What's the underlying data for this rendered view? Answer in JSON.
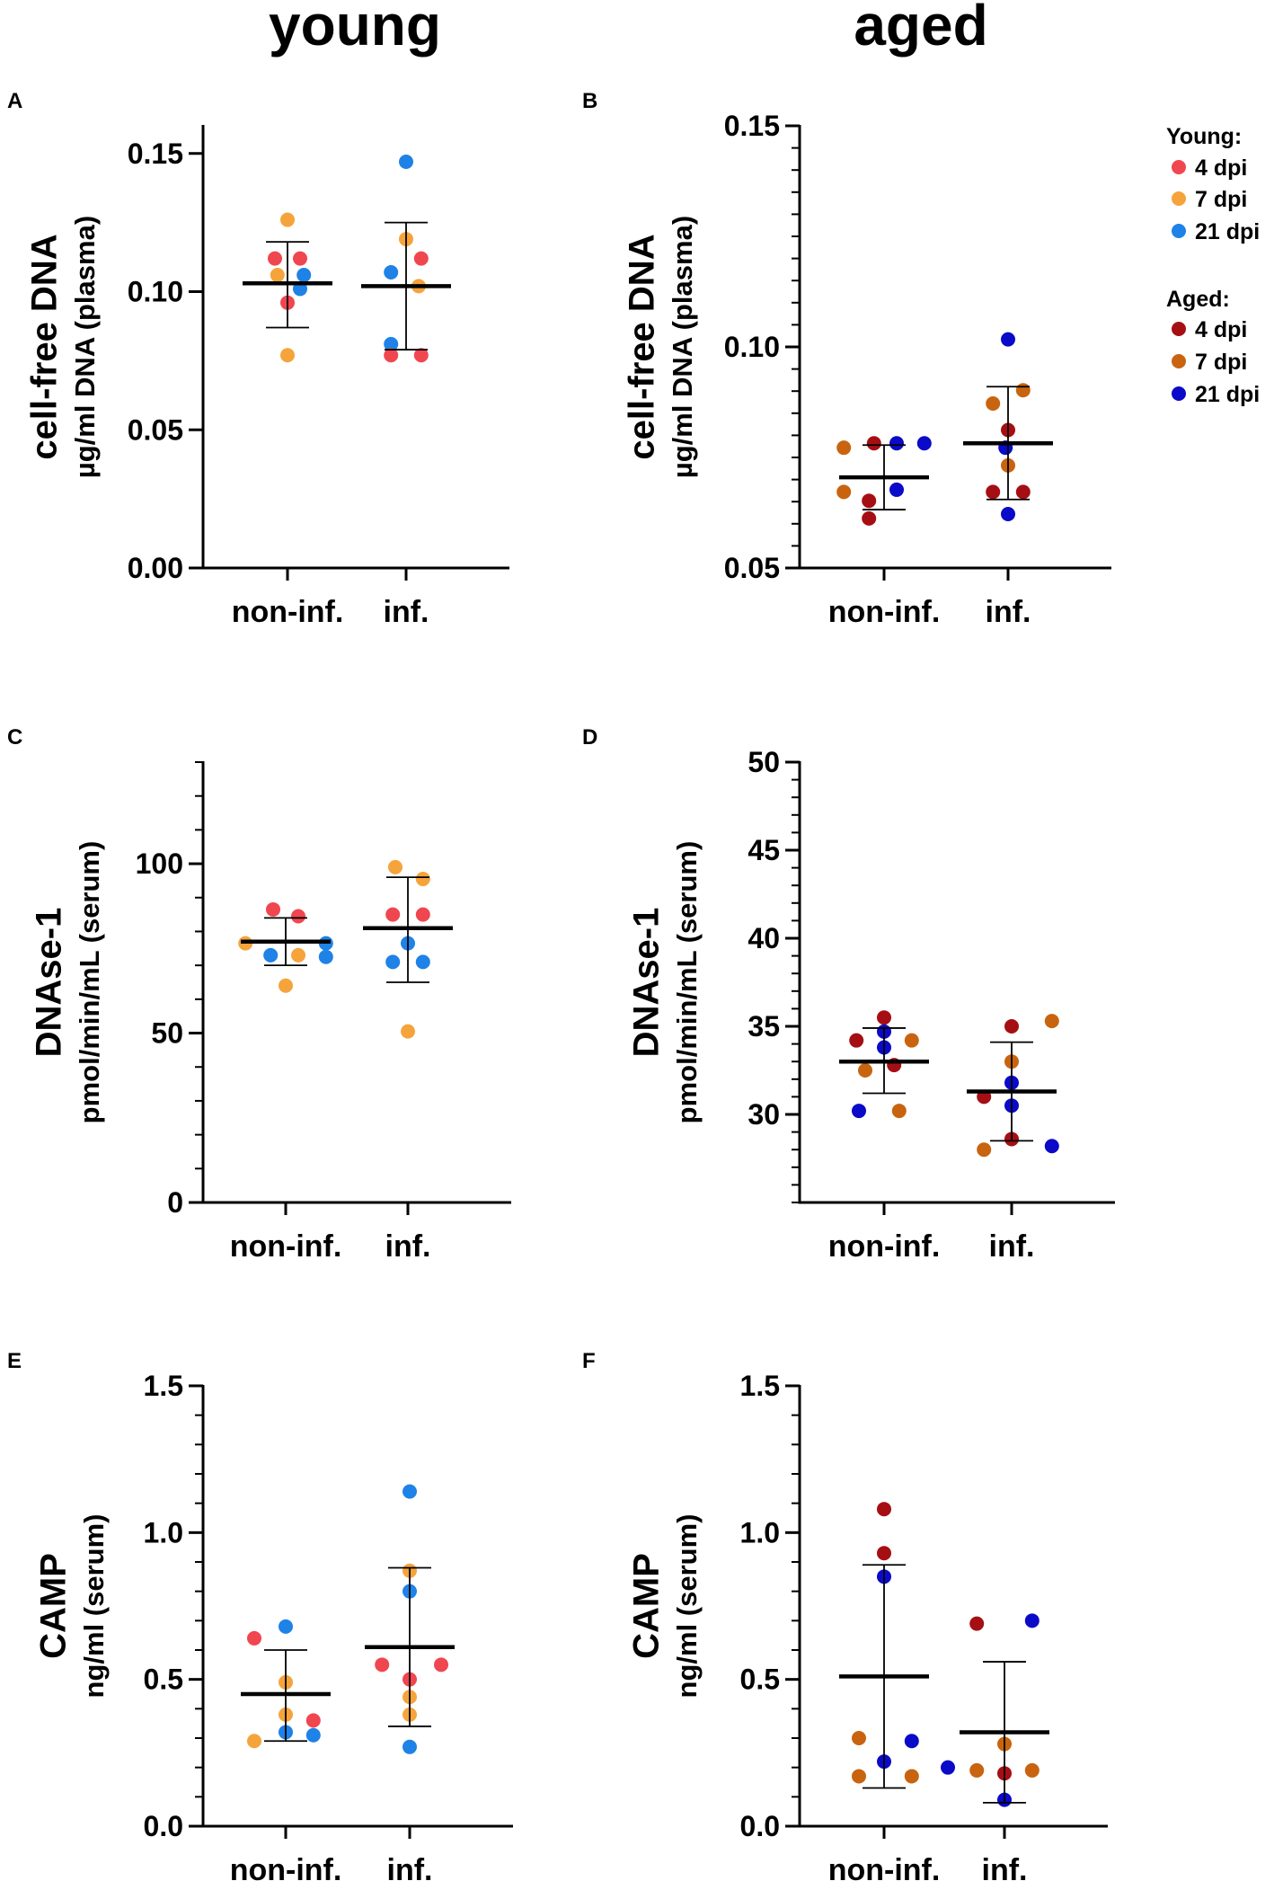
{
  "column_titles": {
    "left": "young",
    "right": "aged"
  },
  "colors": {
    "young_4dpi": "#f04650",
    "young_7dpi": "#f5a43c",
    "young_21dpi": "#1e82e6",
    "aged_4dpi": "#a50f14",
    "aged_7dpi": "#c8640f",
    "aged_21dpi": "#0a0ac8"
  },
  "legend": {
    "young_header": "Young:",
    "aged_header": "Aged:",
    "young_items": [
      {
        "label": "4 dpi",
        "color": "#f04650"
      },
      {
        "label": "7 dpi",
        "color": "#f5a43c"
      },
      {
        "label": "21 dpi",
        "color": "#1e82e6"
      }
    ],
    "aged_items": [
      {
        "label": "4 dpi",
        "color": "#a50f14"
      },
      {
        "label": "7 dpi",
        "color": "#c8640f"
      },
      {
        "label": "21 dpi",
        "color": "#0a0ac8"
      }
    ]
  },
  "chart_data": [
    {
      "panel": "A",
      "type": "scatter",
      "group": "young",
      "ylabel_main": "cell-free  DNA",
      "ylabel_sub": "µg/ml DNA (plasma)",
      "categories": [
        "non-inf.",
        "inf."
      ],
      "ylim": [
        0,
        0.16
      ],
      "yticks": [
        0.0,
        0.05,
        0.1,
        0.15
      ],
      "ytick_labels": [
        "0.00",
        "0.05",
        "0.10",
        "0.15"
      ],
      "minor_ticks": false,
      "summary": [
        {
          "mean": 0.103,
          "sd_low": 0.087,
          "sd_high": 0.118
        },
        {
          "mean": 0.102,
          "sd_low": 0.079,
          "sd_high": 0.125
        }
      ],
      "points": [
        {
          "cat": 0,
          "dx": 0.0,
          "y": 0.126,
          "series": "7dpi"
        },
        {
          "cat": 0,
          "dx": -0.1,
          "y": 0.112,
          "series": "4dpi"
        },
        {
          "cat": 0,
          "dx": 0.1,
          "y": 0.112,
          "series": "4dpi"
        },
        {
          "cat": 0,
          "dx": -0.08,
          "y": 0.106,
          "series": "7dpi"
        },
        {
          "cat": 0,
          "dx": 0.13,
          "y": 0.106,
          "series": "21dpi"
        },
        {
          "cat": 0,
          "dx": 0.1,
          "y": 0.101,
          "series": "21dpi"
        },
        {
          "cat": 0,
          "dx": 0.0,
          "y": 0.096,
          "series": "4dpi"
        },
        {
          "cat": 0,
          "dx": 0.0,
          "y": 0.077,
          "series": "7dpi"
        },
        {
          "cat": 1,
          "dx": 0.0,
          "y": 0.147,
          "series": "21dpi"
        },
        {
          "cat": 1,
          "dx": 0.0,
          "y": 0.119,
          "series": "7dpi"
        },
        {
          "cat": 1,
          "dx": 0.12,
          "y": 0.112,
          "series": "4dpi"
        },
        {
          "cat": 1,
          "dx": -0.12,
          "y": 0.107,
          "series": "21dpi"
        },
        {
          "cat": 1,
          "dx": 0.1,
          "y": 0.102,
          "series": "7dpi"
        },
        {
          "cat": 1,
          "dx": -0.12,
          "y": 0.081,
          "series": "21dpi"
        },
        {
          "cat": 1,
          "dx": -0.12,
          "y": 0.077,
          "series": "4dpi"
        },
        {
          "cat": 1,
          "dx": 0.12,
          "y": 0.077,
          "series": "4dpi"
        }
      ]
    },
    {
      "panel": "B",
      "type": "scatter",
      "group": "aged",
      "ylabel_main": "cell-free  DNA",
      "ylabel_sub": "µg/ml DNA (plasma)",
      "categories": [
        "non-inf.",
        "inf."
      ],
      "ylim": [
        0.05,
        0.15
      ],
      "yticks": [
        0.05,
        0.1,
        0.15
      ],
      "ytick_labels": [
        "0.05",
        "0.10",
        "0.15"
      ],
      "minor_ticks": true,
      "minor_step": 0.005,
      "summary": [
        {
          "mean": 0.0705,
          "sd_low": 0.0632,
          "sd_high": 0.0778
        },
        {
          "mean": 0.0782,
          "sd_low": 0.0655,
          "sd_high": 0.091
        }
      ],
      "points": [
        {
          "cat": 0,
          "dx": -0.32,
          "y": 0.0772,
          "series": "7dpi"
        },
        {
          "cat": 0,
          "dx": -0.08,
          "y": 0.0782,
          "series": "4dpi"
        },
        {
          "cat": 0,
          "dx": 0.1,
          "y": 0.0782,
          "series": "21dpi"
        },
        {
          "cat": 0,
          "dx": 0.32,
          "y": 0.0782,
          "series": "21dpi"
        },
        {
          "cat": 0,
          "dx": -0.32,
          "y": 0.0672,
          "series": "7dpi"
        },
        {
          "cat": 0,
          "dx": 0.1,
          "y": 0.0677,
          "series": "21dpi"
        },
        {
          "cat": 0,
          "dx": -0.12,
          "y": 0.0652,
          "series": "4dpi"
        },
        {
          "cat": 0,
          "dx": -0.12,
          "y": 0.0612,
          "series": "4dpi"
        },
        {
          "cat": 1,
          "dx": 0.0,
          "y": 0.1017,
          "series": "21dpi"
        },
        {
          "cat": 1,
          "dx": 0.12,
          "y": 0.0902,
          "series": "7dpi"
        },
        {
          "cat": 1,
          "dx": -0.12,
          "y": 0.0872,
          "series": "7dpi"
        },
        {
          "cat": 1,
          "dx": 0.0,
          "y": 0.0812,
          "series": "4dpi"
        },
        {
          "cat": 1,
          "dx": -0.02,
          "y": 0.0772,
          "series": "21dpi"
        },
        {
          "cat": 1,
          "dx": 0.0,
          "y": 0.0732,
          "series": "7dpi"
        },
        {
          "cat": 1,
          "dx": 0.12,
          "y": 0.0672,
          "series": "4dpi"
        },
        {
          "cat": 1,
          "dx": -0.12,
          "y": 0.0672,
          "series": "4dpi"
        },
        {
          "cat": 1,
          "dx": 0.0,
          "y": 0.0622,
          "series": "21dpi"
        }
      ]
    },
    {
      "panel": "C",
      "type": "scatter",
      "group": "young",
      "ylabel_main": "DNAse-1",
      "ylabel_sub": "pmol/min/mL (serum)",
      "categories": [
        "non-inf.",
        "inf."
      ],
      "ylim": [
        0,
        130
      ],
      "yticks": [
        0,
        50,
        100
      ],
      "ytick_labels": [
        "0",
        "50",
        "100"
      ],
      "minor_ticks": true,
      "minor_step": 10,
      "summary": [
        {
          "mean": 77,
          "sd_low": 70,
          "sd_high": 84
        },
        {
          "mean": 81,
          "sd_low": 65,
          "sd_high": 96
        }
      ],
      "points": [
        {
          "cat": 0,
          "dx": -0.1,
          "y": 86.5,
          "series": "4dpi"
        },
        {
          "cat": 0,
          "dx": 0.1,
          "y": 84.5,
          "series": "4dpi"
        },
        {
          "cat": 0,
          "dx": -0.32,
          "y": 76.5,
          "series": "7dpi"
        },
        {
          "cat": 0,
          "dx": 0.32,
          "y": 76.5,
          "series": "21dpi"
        },
        {
          "cat": 0,
          "dx": -0.12,
          "y": 73,
          "series": "21dpi"
        },
        {
          "cat": 0,
          "dx": 0.1,
          "y": 73,
          "series": "7dpi"
        },
        {
          "cat": 0,
          "dx": 0.32,
          "y": 72.5,
          "series": "21dpi"
        },
        {
          "cat": 0,
          "dx": 0.0,
          "y": 64,
          "series": "7dpi"
        },
        {
          "cat": 1,
          "dx": -0.1,
          "y": 99,
          "series": "7dpi"
        },
        {
          "cat": 1,
          "dx": 0.12,
          "y": 95.5,
          "series": "7dpi"
        },
        {
          "cat": 1,
          "dx": -0.12,
          "y": 85,
          "series": "4dpi"
        },
        {
          "cat": 1,
          "dx": 0.12,
          "y": 85,
          "series": "4dpi"
        },
        {
          "cat": 1,
          "dx": 0.0,
          "y": 76.5,
          "series": "21dpi"
        },
        {
          "cat": 1,
          "dx": -0.12,
          "y": 71,
          "series": "21dpi"
        },
        {
          "cat": 1,
          "dx": 0.12,
          "y": 71,
          "series": "21dpi"
        },
        {
          "cat": 1,
          "dx": 0.0,
          "y": 50.5,
          "series": "7dpi"
        }
      ]
    },
    {
      "panel": "D",
      "type": "scatter",
      "group": "aged",
      "ylabel_main": "DNAse-1",
      "ylabel_sub": "pmol/min/mL (serum)",
      "categories": [
        "non-inf.",
        "inf."
      ],
      "ylim": [
        25,
        50
      ],
      "yticks": [
        30,
        35,
        40,
        45,
        50
      ],
      "ytick_labels": [
        "30",
        "35",
        "40",
        "45",
        "50"
      ],
      "minor_ticks": true,
      "minor_step": 1,
      "summary": [
        {
          "mean": 33,
          "sd_low": 31.2,
          "sd_high": 34.9
        },
        {
          "mean": 31.3,
          "sd_low": 28.5,
          "sd_high": 34.1
        }
      ],
      "points": [
        {
          "cat": 0,
          "dx": 0.0,
          "y": 35.5,
          "series": "4dpi"
        },
        {
          "cat": 0,
          "dx": -0.22,
          "y": 34.2,
          "series": "4dpi"
        },
        {
          "cat": 0,
          "dx": 0.22,
          "y": 34.2,
          "series": "7dpi"
        },
        {
          "cat": 0,
          "dx": 0.0,
          "y": 34.7,
          "series": "21dpi"
        },
        {
          "cat": 0,
          "dx": 0.0,
          "y": 33.8,
          "series": "21dpi"
        },
        {
          "cat": 0,
          "dx": -0.15,
          "y": 32.5,
          "series": "7dpi"
        },
        {
          "cat": 0,
          "dx": 0.08,
          "y": 32.8,
          "series": "4dpi"
        },
        {
          "cat": 0,
          "dx": -0.2,
          "y": 30.2,
          "series": "21dpi"
        },
        {
          "cat": 0,
          "dx": 0.12,
          "y": 30.2,
          "series": "7dpi"
        },
        {
          "cat": 1,
          "dx": 0.0,
          "y": 35,
          "series": "4dpi"
        },
        {
          "cat": 1,
          "dx": 0.32,
          "y": 35.3,
          "series": "7dpi"
        },
        {
          "cat": 1,
          "dx": 0.0,
          "y": 33,
          "series": "7dpi"
        },
        {
          "cat": 1,
          "dx": 0.0,
          "y": 31.8,
          "series": "21dpi"
        },
        {
          "cat": 1,
          "dx": -0.22,
          "y": 31,
          "series": "4dpi"
        },
        {
          "cat": 1,
          "dx": 0.0,
          "y": 30.5,
          "series": "21dpi"
        },
        {
          "cat": 1,
          "dx": 0.0,
          "y": 28.6,
          "series": "4dpi"
        },
        {
          "cat": 1,
          "dx": -0.22,
          "y": 28,
          "series": "7dpi"
        },
        {
          "cat": 1,
          "dx": 0.32,
          "y": 28.2,
          "series": "21dpi"
        }
      ]
    },
    {
      "panel": "E",
      "type": "scatter",
      "group": "young",
      "ylabel_main": "CAMP",
      "ylabel_sub": "ng/ml (serum)",
      "categories": [
        "non-inf.",
        "inf."
      ],
      "ylim": [
        0,
        1.5
      ],
      "yticks": [
        0.0,
        0.5,
        1.0,
        1.5
      ],
      "ytick_labels": [
        "0.0",
        "0.5",
        "1.0",
        "1.5"
      ],
      "minor_ticks": true,
      "minor_step": 0.1,
      "summary": [
        {
          "mean": 0.45,
          "sd_low": 0.29,
          "sd_high": 0.6
        },
        {
          "mean": 0.61,
          "sd_low": 0.34,
          "sd_high": 0.88
        }
      ],
      "points": [
        {
          "cat": 0,
          "dx": -0.25,
          "y": 0.64,
          "series": "4dpi"
        },
        {
          "cat": 0,
          "dx": 0.0,
          "y": 0.68,
          "series": "21dpi"
        },
        {
          "cat": 0,
          "dx": 0.0,
          "y": 0.49,
          "series": "7dpi"
        },
        {
          "cat": 0,
          "dx": 0.0,
          "y": 0.38,
          "series": "7dpi"
        },
        {
          "cat": 0,
          "dx": 0.22,
          "y": 0.36,
          "series": "4dpi"
        },
        {
          "cat": 0,
          "dx": 0.0,
          "y": 0.32,
          "series": "21dpi"
        },
        {
          "cat": 0,
          "dx": 0.22,
          "y": 0.31,
          "series": "21dpi"
        },
        {
          "cat": 0,
          "dx": -0.25,
          "y": 0.29,
          "series": "7dpi"
        },
        {
          "cat": 1,
          "dx": 0.0,
          "y": 1.14,
          "series": "21dpi"
        },
        {
          "cat": 1,
          "dx": 0.0,
          "y": 0.87,
          "series": "7dpi"
        },
        {
          "cat": 1,
          "dx": 0.0,
          "y": 0.8,
          "series": "21dpi"
        },
        {
          "cat": 1,
          "dx": -0.22,
          "y": 0.55,
          "series": "4dpi"
        },
        {
          "cat": 1,
          "dx": 0.25,
          "y": 0.55,
          "series": "4dpi"
        },
        {
          "cat": 1,
          "dx": 0.0,
          "y": 0.5,
          "series": "4dpi"
        },
        {
          "cat": 1,
          "dx": 0.0,
          "y": 0.44,
          "series": "7dpi"
        },
        {
          "cat": 1,
          "dx": 0.0,
          "y": 0.38,
          "series": "7dpi"
        },
        {
          "cat": 1,
          "dx": 0.0,
          "y": 0.27,
          "series": "21dpi"
        }
      ]
    },
    {
      "panel": "F",
      "type": "scatter",
      "group": "aged",
      "ylabel_main": "CAMP",
      "ylabel_sub": "ng/ml (serum)",
      "categories": [
        "non-inf.",
        "inf."
      ],
      "ylim": [
        0,
        1.5
      ],
      "yticks": [
        0.0,
        0.5,
        1.0,
        1.5
      ],
      "ytick_labels": [
        "0.0",
        "0.5",
        "1.0",
        "1.5"
      ],
      "minor_ticks": true,
      "minor_step": 0.1,
      "summary": [
        {
          "mean": 0.51,
          "sd_low": 0.13,
          "sd_high": 0.89
        },
        {
          "mean": 0.32,
          "sd_low": 0.08,
          "sd_high": 0.56
        }
      ],
      "points": [
        {
          "cat": 0,
          "dx": 0.0,
          "y": 1.08,
          "series": "4dpi"
        },
        {
          "cat": 0,
          "dx": 0.0,
          "y": 0.93,
          "series": "4dpi"
        },
        {
          "cat": 0,
          "dx": 0.0,
          "y": 0.85,
          "series": "21dpi"
        },
        {
          "cat": 0,
          "dx": -0.2,
          "y": 0.3,
          "series": "7dpi"
        },
        {
          "cat": 0,
          "dx": 0.22,
          "y": 0.29,
          "series": "21dpi"
        },
        {
          "cat": 0,
          "dx": 0.0,
          "y": 0.22,
          "series": "21dpi"
        },
        {
          "cat": 0,
          "dx": -0.2,
          "y": 0.17,
          "series": "7dpi"
        },
        {
          "cat": 0,
          "dx": 0.22,
          "y": 0.17,
          "series": "7dpi"
        },
        {
          "cat": 1,
          "dx": -0.22,
          "y": 0.69,
          "series": "4dpi"
        },
        {
          "cat": 1,
          "dx": 0.22,
          "y": 0.7,
          "series": "21dpi"
        },
        {
          "cat": 1,
          "dx": 0.0,
          "y": 0.28,
          "series": "7dpi"
        },
        {
          "cat": 1,
          "dx": -0.45,
          "y": 0.2,
          "series": "21dpi"
        },
        {
          "cat": 1,
          "dx": -0.22,
          "y": 0.19,
          "series": "7dpi"
        },
        {
          "cat": 1,
          "dx": 0.0,
          "y": 0.18,
          "series": "4dpi"
        },
        {
          "cat": 1,
          "dx": 0.22,
          "y": 0.19,
          "series": "7dpi"
        },
        {
          "cat": 1,
          "dx": 0.0,
          "y": 0.09,
          "series": "21dpi"
        }
      ]
    }
  ]
}
